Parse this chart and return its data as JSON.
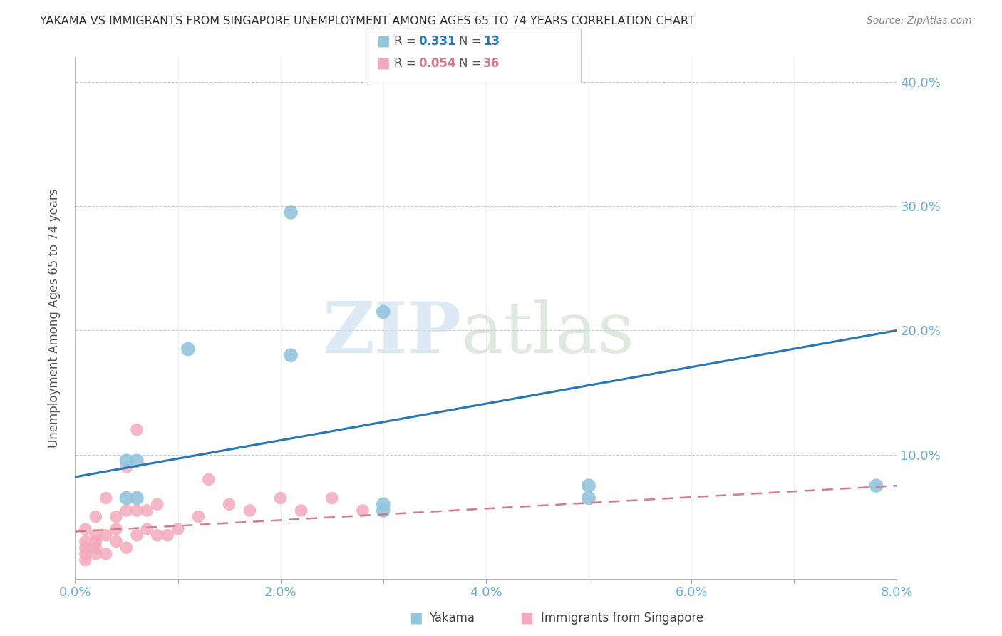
{
  "title": "YAKAMA VS IMMIGRANTS FROM SINGAPORE UNEMPLOYMENT AMONG AGES 65 TO 74 YEARS CORRELATION CHART",
  "source": "Source: ZipAtlas.com",
  "ylabel": "Unemployment Among Ages 65 to 74 years",
  "xlim": [
    0.0,
    0.08
  ],
  "ylim": [
    0.0,
    0.42
  ],
  "xticks": [
    0.0,
    0.01,
    0.02,
    0.03,
    0.04,
    0.05,
    0.06,
    0.07,
    0.08
  ],
  "xtick_labels": [
    "0.0%",
    "",
    "2.0%",
    "",
    "4.0%",
    "",
    "6.0%",
    "",
    "8.0%"
  ],
  "ytick_vals": [
    0.0,
    0.1,
    0.2,
    0.3,
    0.4
  ],
  "ytick_labels": [
    "",
    "10.0%",
    "20.0%",
    "30.0%",
    "40.0%"
  ],
  "yakama_x": [
    0.005,
    0.006,
    0.011,
    0.021,
    0.03,
    0.03,
    0.05,
    0.078,
    0.005,
    0.006,
    0.021,
    0.03,
    0.05
  ],
  "yakama_y": [
    0.095,
    0.095,
    0.185,
    0.18,
    0.06,
    0.055,
    0.075,
    0.075,
    0.065,
    0.065,
    0.295,
    0.215,
    0.065
  ],
  "singapore_x": [
    0.001,
    0.001,
    0.001,
    0.001,
    0.001,
    0.002,
    0.002,
    0.002,
    0.002,
    0.002,
    0.003,
    0.003,
    0.003,
    0.004,
    0.004,
    0.004,
    0.005,
    0.005,
    0.005,
    0.006,
    0.006,
    0.006,
    0.007,
    0.007,
    0.008,
    0.008,
    0.009,
    0.01,
    0.012,
    0.013,
    0.015,
    0.017,
    0.02,
    0.022,
    0.025,
    0.028
  ],
  "singapore_y": [
    0.025,
    0.03,
    0.04,
    0.02,
    0.015,
    0.02,
    0.03,
    0.05,
    0.035,
    0.025,
    0.02,
    0.035,
    0.065,
    0.03,
    0.04,
    0.05,
    0.025,
    0.055,
    0.09,
    0.035,
    0.055,
    0.12,
    0.04,
    0.055,
    0.035,
    0.06,
    0.035,
    0.04,
    0.05,
    0.08,
    0.06,
    0.055,
    0.065,
    0.055,
    0.065,
    0.055
  ],
  "yakama_R": 0.331,
  "yakama_N": 13,
  "singapore_R": 0.054,
  "singapore_N": 36,
  "blue_scatter_color": "#92c5de",
  "pink_scatter_color": "#f4a9bb",
  "blue_line_color": "#2878b5",
  "pink_line_color": "#d17a8a",
  "grid_color": "#cccccc",
  "tick_color": "#6baed6",
  "title_color": "#333333",
  "ylabel_color": "#555555",
  "source_color": "#888888",
  "blue_line_x": [
    0.0,
    0.08
  ],
  "blue_line_y": [
    0.082,
    0.2
  ],
  "pink_line_x": [
    0.0,
    0.08
  ],
  "pink_line_y": [
    0.038,
    0.075
  ],
  "watermark_zip_color": "#cfe0f0",
  "watermark_atlas_color": "#c5d8c5"
}
